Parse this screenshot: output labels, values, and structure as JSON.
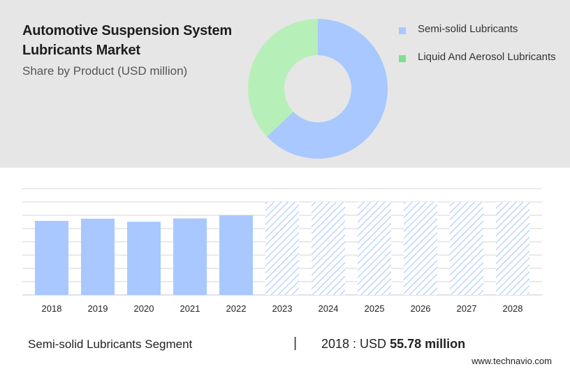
{
  "header": {
    "title": "Automotive Suspension System Lubricants Market",
    "subtitle": "Share by Product (USD million)"
  },
  "colors": {
    "semi_solid": "#a8c8ff",
    "liquid_aerosol": "#b7efb8",
    "forecast_hatch": "#a8c8ff",
    "grid": "#d6d6d6"
  },
  "chart_data": [
    {
      "type": "pie",
      "style": "donut",
      "legend_position": "right",
      "labels": [
        "Semi-solid Lubricants",
        "Liquid And Aerosol Lubricants"
      ],
      "values": [
        63,
        37
      ]
    },
    {
      "type": "bar",
      "categories": [
        "2018",
        "2019",
        "2020",
        "2021",
        "2022",
        "2023",
        "2024",
        "2025",
        "2026",
        "2027",
        "2028"
      ],
      "values": [
        55.78,
        57.4,
        55.1,
        57.6,
        59.8,
        null,
        null,
        null,
        null,
        null,
        null
      ],
      "forecast_categories": [
        "2023",
        "2024",
        "2025",
        "2026",
        "2027",
        "2028"
      ],
      "ylim": [
        0,
        80
      ],
      "grid": true
    }
  ],
  "footer": {
    "segment_label": "Semi-solid Lubricants Segment",
    "separator": "|",
    "year_label": "2018 : USD",
    "value_label": "55.78 million",
    "source": "www.technavio.com"
  }
}
